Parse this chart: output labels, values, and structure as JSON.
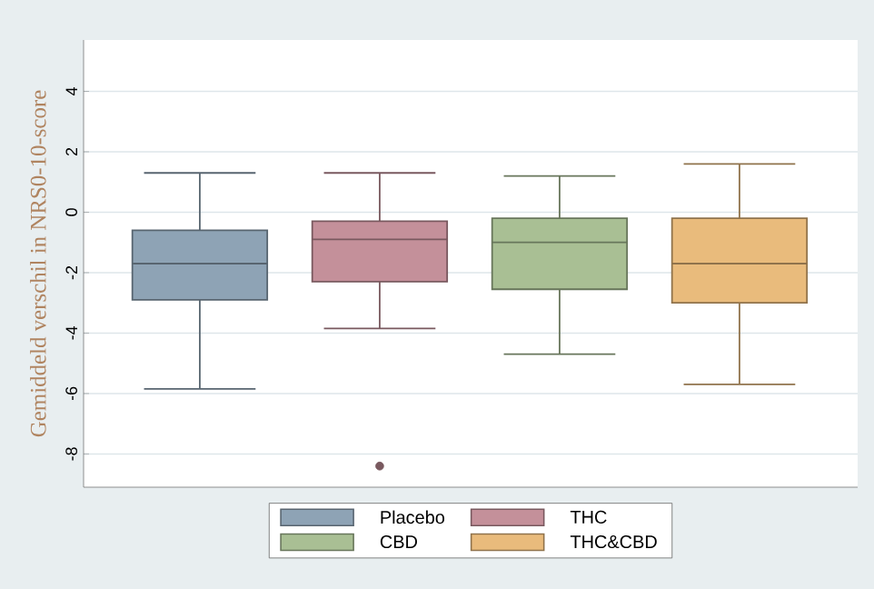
{
  "chart_data": {
    "type": "box",
    "ylabel": "Gemiddeld verschil in NRS0-10-score",
    "categories": [
      null,
      null,
      null,
      null
    ],
    "ylim": [
      -9.1,
      5.7
    ],
    "yticks": [
      -8,
      -6,
      -4,
      -2,
      0,
      2,
      4
    ],
    "grid": "y",
    "legend": "bottom",
    "series": [
      {
        "name": "Placebo",
        "color": "#8ea3b5",
        "boxes": [
          {
            "low": -5.85,
            "q1": -2.9,
            "median": -1.7,
            "q3": -0.6,
            "high": 1.3
          },
          null,
          null,
          null
        ]
      },
      {
        "name": "THC",
        "color": "#c4909a",
        "boxes": [
          null,
          {
            "low": -3.85,
            "q1": -2.3,
            "median": -0.9,
            "q3": -0.3,
            "high": 1.3,
            "outliers": [
              -8.4
            ]
          },
          null,
          null
        ]
      },
      {
        "name": "CBD",
        "color": "#a9bf94",
        "boxes": [
          null,
          null,
          {
            "low": -4.7,
            "q1": -2.55,
            "median": -1.0,
            "q3": -0.2,
            "high": 1.2
          },
          null
        ]
      },
      {
        "name": "THC&CBD",
        "color": "#e9bb7c",
        "boxes": [
          null,
          null,
          null,
          {
            "low": -5.7,
            "q1": -3.0,
            "median": -1.7,
            "q3": -0.2,
            "high": 1.6
          }
        ]
      }
    ]
  }
}
